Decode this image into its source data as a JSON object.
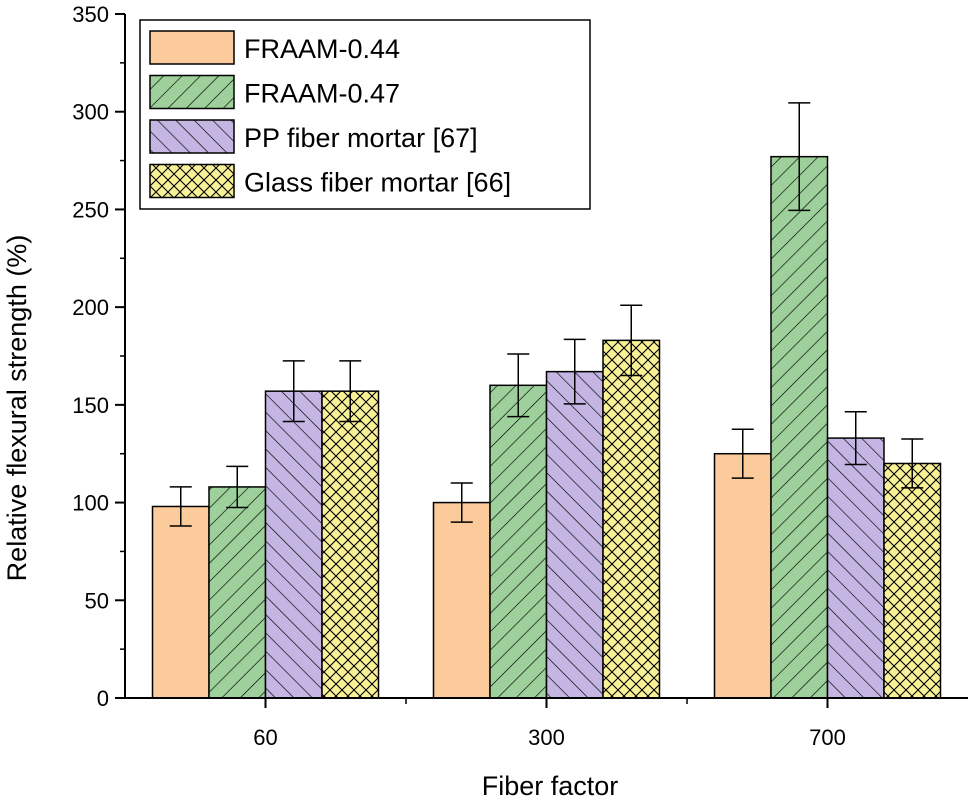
{
  "chart_data": {
    "type": "bar",
    "title": "",
    "xlabel": "Fiber factor",
    "ylabel": "Relative flexural strength (%)",
    "ylim": [
      0,
      350
    ],
    "yticks": [
      0,
      50,
      100,
      150,
      200,
      250,
      300,
      350
    ],
    "categories": [
      "60",
      "300",
      "700"
    ],
    "legend_position": "top-left",
    "series": [
      {
        "name": "FRAAM-0.44",
        "values": [
          98,
          100,
          125
        ],
        "errors": [
          10,
          10,
          12.5
        ],
        "color": "#FCCB9C",
        "pattern": "none"
      },
      {
        "name": "FRAAM-0.47",
        "values": [
          108,
          160,
          277
        ],
        "errors": [
          10.5,
          16,
          27.5
        ],
        "color": "#9DD09A",
        "pattern": "forward-diagonal"
      },
      {
        "name": "PP fiber mortar [67]",
        "values": [
          157,
          167,
          133
        ],
        "errors": [
          15.5,
          16.5,
          13.5
        ],
        "color": "#C4B5E2",
        "pattern": "backward-diagonal"
      },
      {
        "name": "Glass fiber mortar [66]",
        "values": [
          157,
          183,
          120
        ],
        "errors": [
          15.5,
          18,
          12.5
        ],
        "color": "#F9F196",
        "pattern": "cross-hatch"
      }
    ]
  }
}
